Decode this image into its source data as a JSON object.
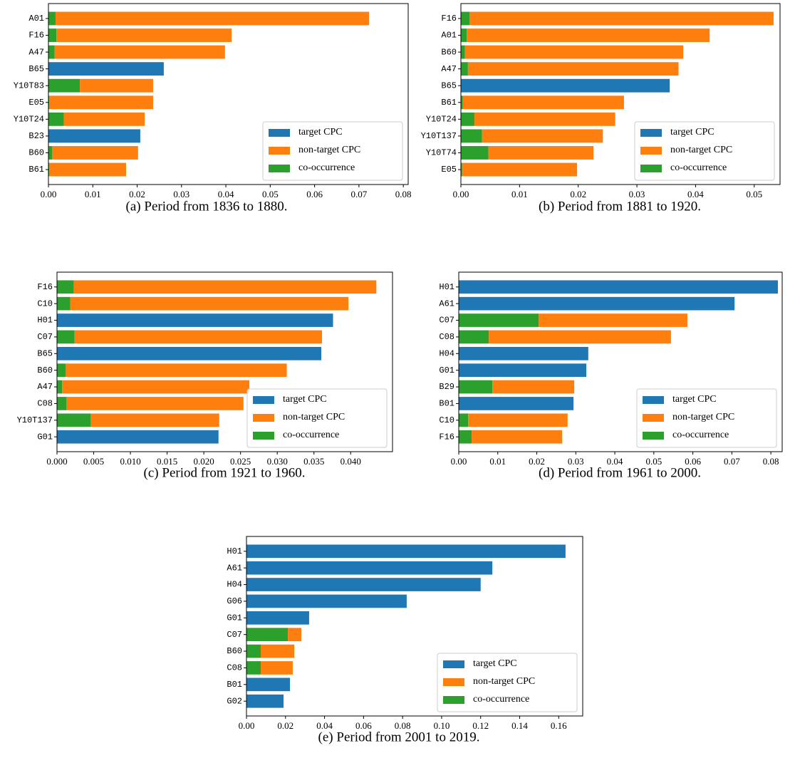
{
  "chart_data": [
    {
      "type": "bar",
      "orientation": "horizontal",
      "caption": "(a) Period from 1836 to 1880.",
      "categories": [
        "A01",
        "F16",
        "A47",
        "B65",
        "Y10T83",
        "E05",
        "Y10T24",
        "B23",
        "B60",
        "B61"
      ],
      "series": [
        {
          "name": "target CPC",
          "color": "#1f77b4",
          "values": [
            0,
            0,
            0,
            0.026,
            0,
            0,
            0,
            0.0207,
            0,
            0
          ]
        },
        {
          "name": "non-target CPC",
          "color": "#ff7f0e",
          "values": [
            0.0707,
            0.0395,
            0.0384,
            0,
            0.0165,
            0.0234,
            0.0182,
            0,
            0.0194,
            0.0173
          ]
        },
        {
          "name": "co-occurrence",
          "color": "#2ca02c",
          "values": [
            0.0016,
            0.0018,
            0.0014,
            0,
            0.0071,
            0.0002,
            0.0035,
            0,
            0.0008,
            0.0002
          ]
        }
      ],
      "xlim": [
        0,
        0.0811
      ],
      "xticks": [
        {
          "value": 0,
          "label": "0.00"
        },
        0.01,
        0.02,
        0.03,
        0.04,
        0.05,
        0.06,
        0.07,
        0.08
      ],
      "legend": "lower right"
    },
    {
      "type": "bar",
      "orientation": "horizontal",
      "caption": "(b) Period from 1881 to 1920.",
      "categories": [
        "F16",
        "A01",
        "B60",
        "A47",
        "B65",
        "B61",
        "Y10T24",
        "Y10T137",
        "Y10T74",
        "E05"
      ],
      "series": [
        {
          "name": "target CPC",
          "color": "#1f77b4",
          "values": [
            0,
            0,
            0,
            0,
            0.0356,
            0,
            0,
            0,
            0,
            0
          ]
        },
        {
          "name": "non-target CPC",
          "color": "#ff7f0e",
          "values": [
            0.0518,
            0.0414,
            0.0372,
            0.0359,
            0,
            0.0275,
            0.024,
            0.0206,
            0.0179,
            0.0196
          ]
        },
        {
          "name": "co-occurrence",
          "color": "#2ca02c",
          "values": [
            0.0015,
            0.001,
            0.0007,
            0.0012,
            0,
            0.0003,
            0.0023,
            0.0036,
            0.0047,
            0.0002
          ]
        }
      ],
      "xlim": [
        0,
        0.0544
      ],
      "xticks": [
        {
          "value": 0,
          "label": "0.00"
        },
        0.01,
        0.02,
        0.03,
        0.04,
        0.05
      ],
      "legend": "lower right"
    },
    {
      "type": "bar",
      "orientation": "horizontal",
      "caption": "(c) Period from 1921 to 1960.",
      "categories": [
        "F16",
        "C10",
        "H01",
        "C07",
        "B65",
        "B60",
        "A47",
        "C08",
        "Y10T137",
        "G01"
      ],
      "series": [
        {
          "name": "target CPC",
          "color": "#1f77b4",
          "values": [
            0,
            0,
            0.0376,
            0,
            0.036,
            0,
            0,
            0,
            0,
            0.022
          ]
        },
        {
          "name": "non-target CPC",
          "color": "#ff7f0e",
          "values": [
            0.0412,
            0.0379,
            0,
            0.0337,
            0,
            0.0301,
            0.0255,
            0.0241,
            0.0175,
            0
          ]
        },
        {
          "name": "co-occurrence",
          "color": "#2ca02c",
          "values": [
            0.0023,
            0.0018,
            0,
            0.0024,
            0,
            0.0012,
            0.0007,
            0.0013,
            0.0046,
            0
          ]
        }
      ],
      "xlim": [
        0,
        0.0457
      ],
      "xticks": [
        {
          "value": 0,
          "label": "0.000"
        },
        0.005,
        {
          "value": 0.01,
          "label": "0.010"
        },
        0.015,
        {
          "value": 0.02,
          "label": "0.020"
        },
        0.025,
        {
          "value": 0.03,
          "label": "0.030"
        },
        0.035,
        {
          "value": 0.04,
          "label": "0.040"
        }
      ],
      "legend": "lower right"
    },
    {
      "type": "bar",
      "orientation": "horizontal",
      "caption": "(d) Period from 1961 to 2000.",
      "categories": [
        "H01",
        "A61",
        "C07",
        "C08",
        "H04",
        "G01",
        "B29",
        "B01",
        "C10",
        "F16"
      ],
      "series": [
        {
          "name": "target CPC",
          "color": "#1f77b4",
          "values": [
            0.0818,
            0.0707,
            0,
            0,
            0.0332,
            0.0327,
            0,
            0.0294,
            0,
            0
          ]
        },
        {
          "name": "non-target CPC",
          "color": "#ff7f0e",
          "values": [
            0,
            0,
            0.0381,
            0.0467,
            0,
            0,
            0.021,
            0,
            0.0255,
            0.0232
          ]
        },
        {
          "name": "co-occurrence",
          "color": "#2ca02c",
          "values": [
            0,
            0,
            0.0205,
            0.0077,
            0,
            0,
            0.0086,
            0,
            0.0024,
            0.0033
          ]
        }
      ],
      "xlim": [
        0,
        0.0829
      ],
      "xticks": [
        {
          "value": 0,
          "label": "0.00"
        },
        0.01,
        0.02,
        0.03,
        0.04,
        0.05,
        0.06,
        0.07,
        0.08
      ],
      "legend": "lower right"
    },
    {
      "type": "bar",
      "orientation": "horizontal",
      "caption": "(e) Period from 2001 to 2019.",
      "categories": [
        "H01",
        "A61",
        "H04",
        "G06",
        "G01",
        "C07",
        "B60",
        "C08",
        "B01",
        "G02"
      ],
      "series": [
        {
          "name": "target CPC",
          "color": "#1f77b4",
          "values": [
            0.1635,
            0.126,
            0.12,
            0.0821,
            0.0321,
            0,
            0,
            0,
            0.0223,
            0.019
          ]
        },
        {
          "name": "non-target CPC",
          "color": "#ff7f0e",
          "values": [
            0,
            0,
            0,
            0,
            0,
            0.0069,
            0.0172,
            0.0164,
            0,
            0
          ]
        },
        {
          "name": "co-occurrence",
          "color": "#2ca02c",
          "values": [
            0,
            0,
            0,
            0,
            0,
            0.0212,
            0.0073,
            0.0073,
            0,
            0
          ]
        }
      ],
      "xlim": [
        0,
        0.1723
      ],
      "xticks": [
        {
          "value": 0,
          "label": "0.00"
        },
        0.02,
        0.04,
        0.06,
        0.08,
        {
          "value": 0.1,
          "label": "0.10"
        },
        0.12,
        0.14,
        0.16
      ],
      "legend": "lower right"
    }
  ]
}
